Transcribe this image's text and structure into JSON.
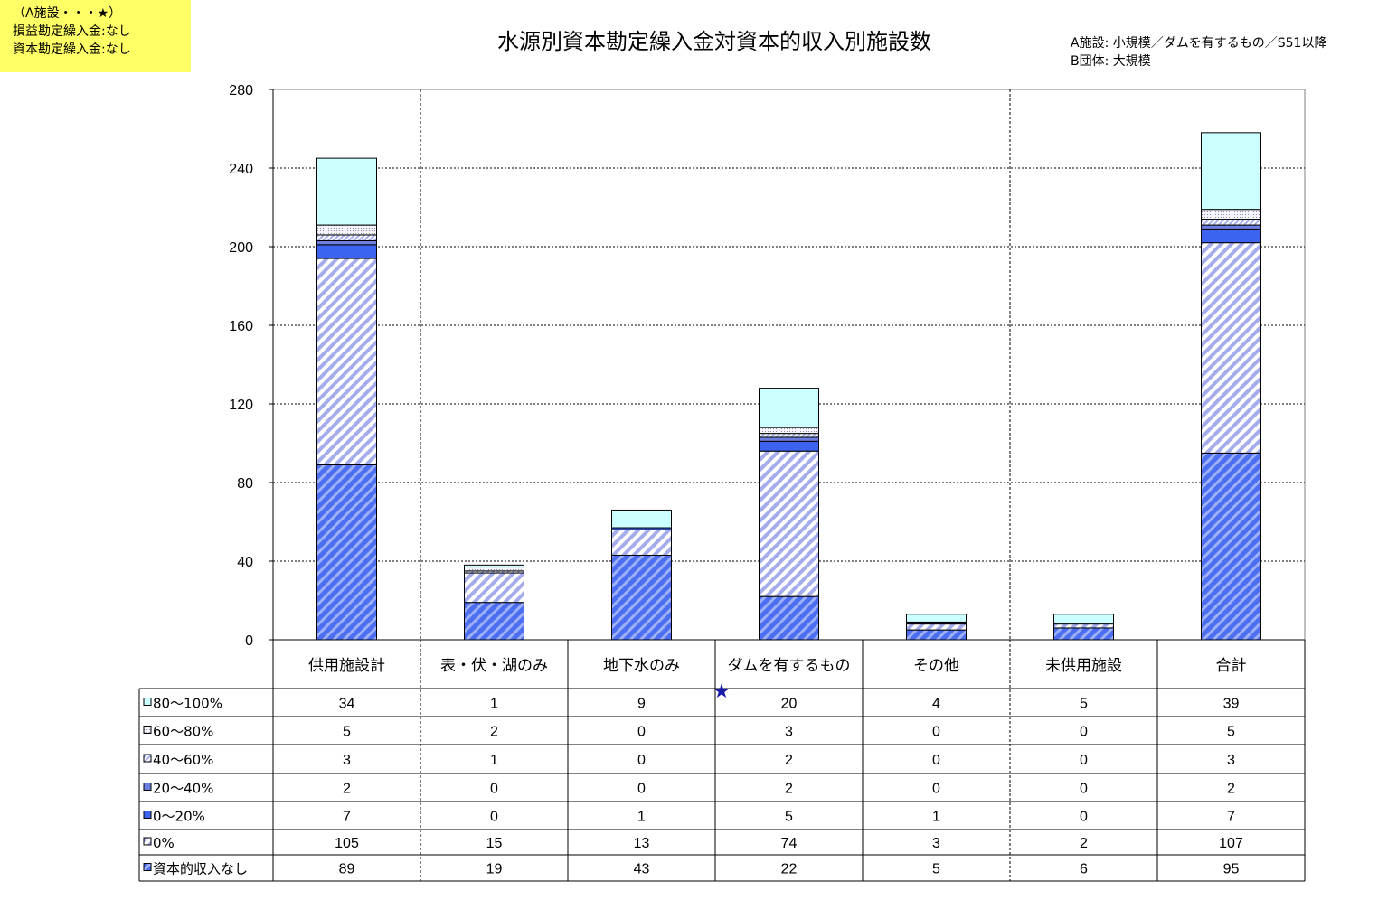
{
  "note_box": {
    "line1": "（A施設・・・★）",
    "line2": "損益勘定繰入金:なし",
    "line3": "資本勘定繰入金:なし"
  },
  "title": "水源別資本勘定繰入金対資本的収入別施設数",
  "definitions": {
    "a": "A施設: 小規模／ダムを有するもの／S51以降",
    "b": "B団体: 大規模"
  },
  "marker": {
    "symbol": "★",
    "color": "#1a1aa8"
  },
  "chart_data": {
    "type": "bar",
    "stacked": true,
    "title": "水源別資本勘定繰入金対資本的収入別施設数",
    "categories": [
      "供用施設計",
      "表・伏・湖のみ",
      "地下水のみ",
      "ダムを有するもの",
      "その他",
      "未供用施設",
      "合計"
    ],
    "ylim": [
      0,
      280
    ],
    "yticks": [
      0,
      40,
      80,
      120,
      160,
      200,
      240,
      280
    ],
    "grid": true,
    "series": [
      {
        "name": "資本的収入なし",
        "values": [
          89,
          19,
          43,
          22,
          5,
          6,
          95
        ],
        "color": "#4466ee",
        "pattern": "dark-diag"
      },
      {
        "name": "0%",
        "values": [
          105,
          15,
          13,
          74,
          3,
          2,
          107
        ],
        "color": "#aab2f0",
        "pattern": "light-diag"
      },
      {
        "name": "0～20%",
        "values": [
          7,
          0,
          1,
          5,
          1,
          0,
          7
        ],
        "color": "#3c64f0",
        "pattern": "solid"
      },
      {
        "name": "20～40%",
        "values": [
          2,
          0,
          0,
          2,
          0,
          0,
          2
        ],
        "color": "#6c7ee0",
        "pattern": "solid"
      },
      {
        "name": "40～60%",
        "values": [
          3,
          1,
          0,
          2,
          0,
          0,
          3
        ],
        "color": "#c0c6f6",
        "pattern": "dense"
      },
      {
        "name": "60～80%",
        "values": [
          5,
          2,
          0,
          3,
          0,
          0,
          5
        ],
        "color": "#e4e4ec",
        "pattern": "dots"
      },
      {
        "name": "80～100%",
        "values": [
          34,
          1,
          9,
          20,
          4,
          5,
          39
        ],
        "color": "#ccffff",
        "pattern": "solid"
      }
    ]
  }
}
